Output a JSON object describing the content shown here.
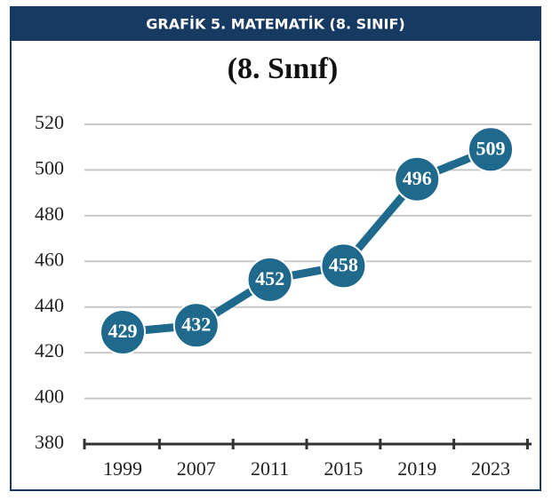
{
  "header": {
    "title": "GRAFİK 5.  MATEMATİK (8. SINIF)"
  },
  "chart_data": {
    "type": "line",
    "title": "(8. Sınıf)",
    "categories": [
      "1999",
      "2007",
      "2011",
      "2015",
      "2019",
      "2023"
    ],
    "series": [
      {
        "name": "Matematik",
        "color": "#1f6a8c",
        "values": [
          429,
          432,
          452,
          458,
          496,
          509
        ]
      }
    ],
    "ylim": [
      380,
      520
    ],
    "yticks": [
      380,
      400,
      420,
      440,
      460,
      480,
      500,
      520
    ],
    "grid": true
  }
}
